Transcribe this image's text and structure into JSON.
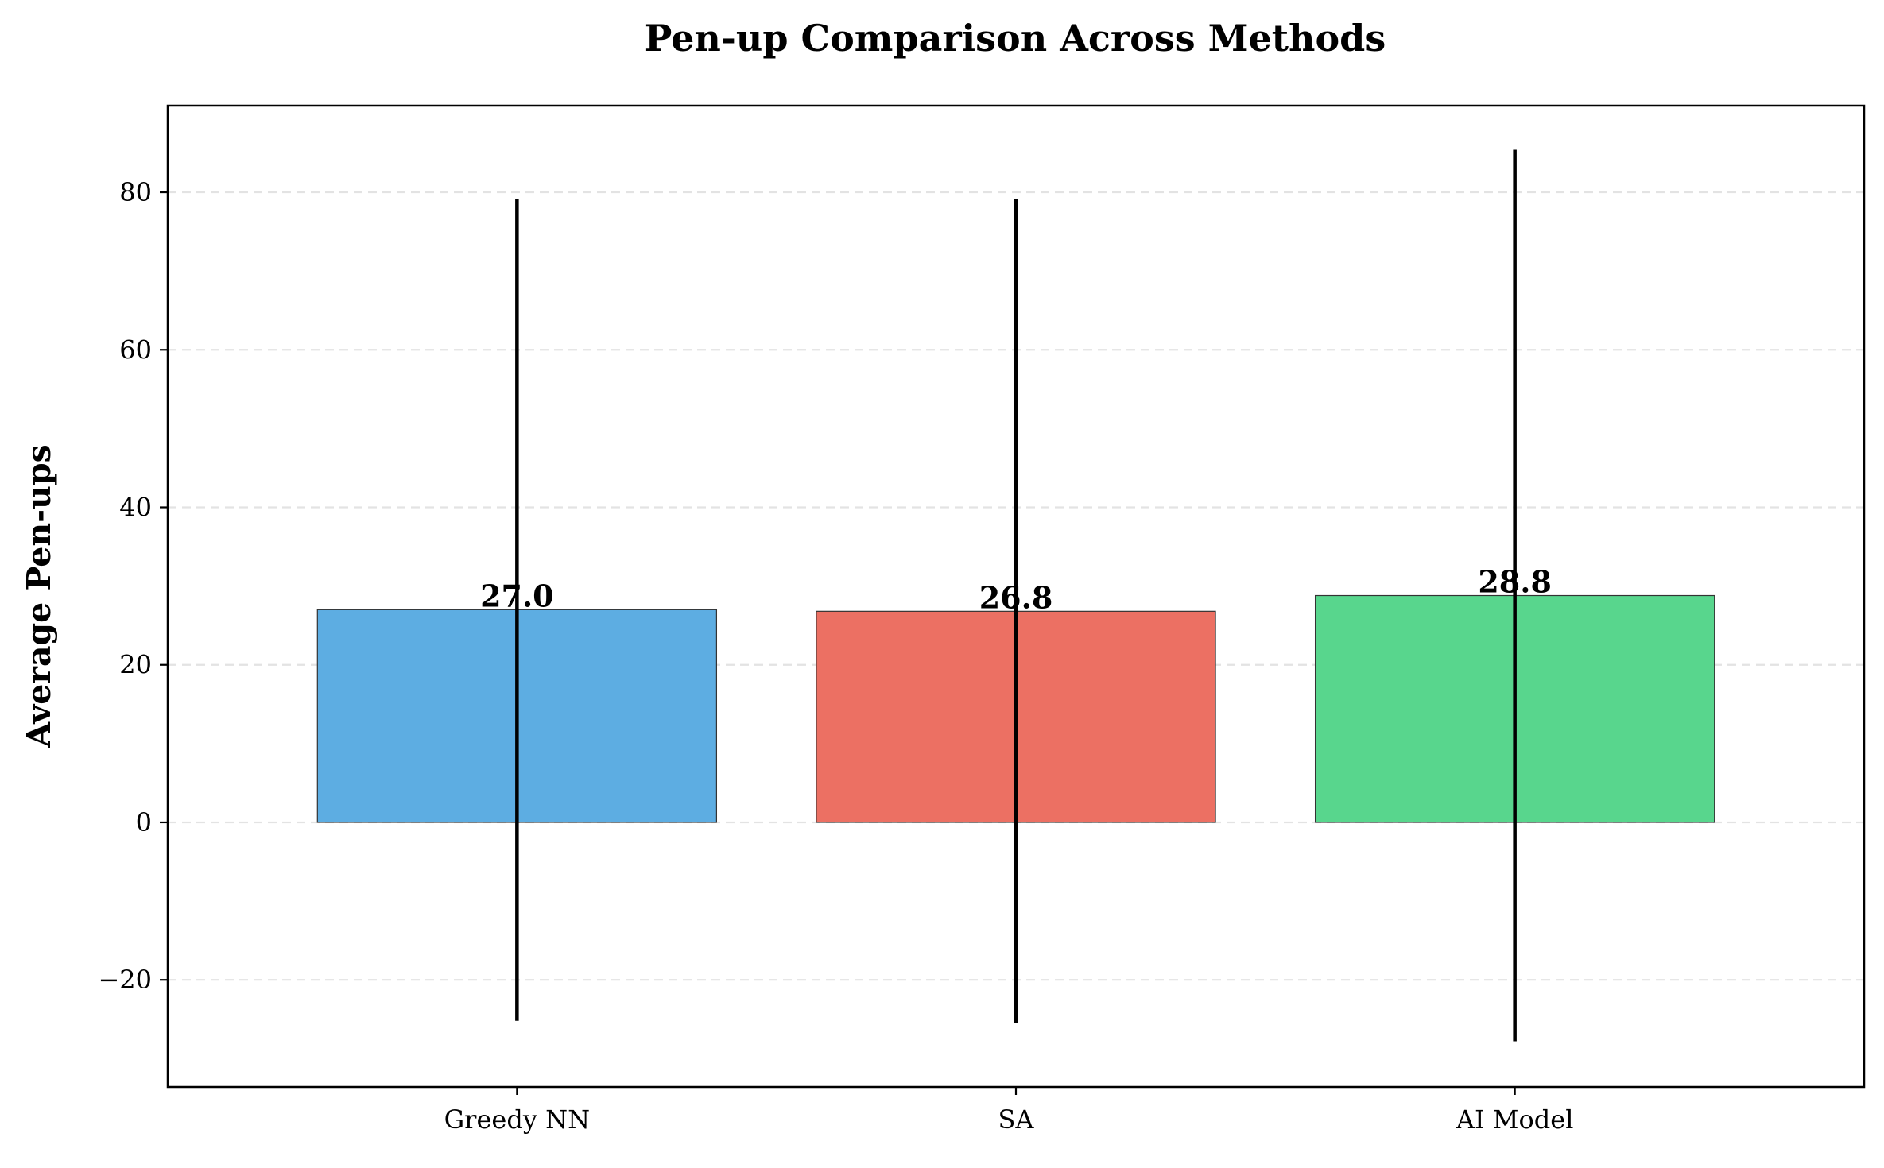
{
  "chart_data": {
    "type": "bar",
    "title": "Pen-up Comparison Across Methods",
    "xlabel": "",
    "ylabel": "Average Pen-ups",
    "categories": [
      "Greedy NN",
      "SA",
      "AI Model"
    ],
    "values": [
      27.0,
      26.8,
      28.8
    ],
    "value_labels": [
      "27.0",
      "26.8",
      "28.8"
    ],
    "error": [
      52.2,
      52.3,
      56.6
    ],
    "colors": [
      "#5dade2",
      "#ec7063",
      "#58d68d"
    ],
    "ylim": [
      -33.6,
      91.0
    ],
    "yticks": [
      -20,
      0,
      20,
      40,
      60,
      80
    ],
    "ytick_labels": [
      "−20",
      "0",
      "20",
      "40",
      "60",
      "80"
    ],
    "grid": "y-dashed",
    "legend": "none"
  }
}
